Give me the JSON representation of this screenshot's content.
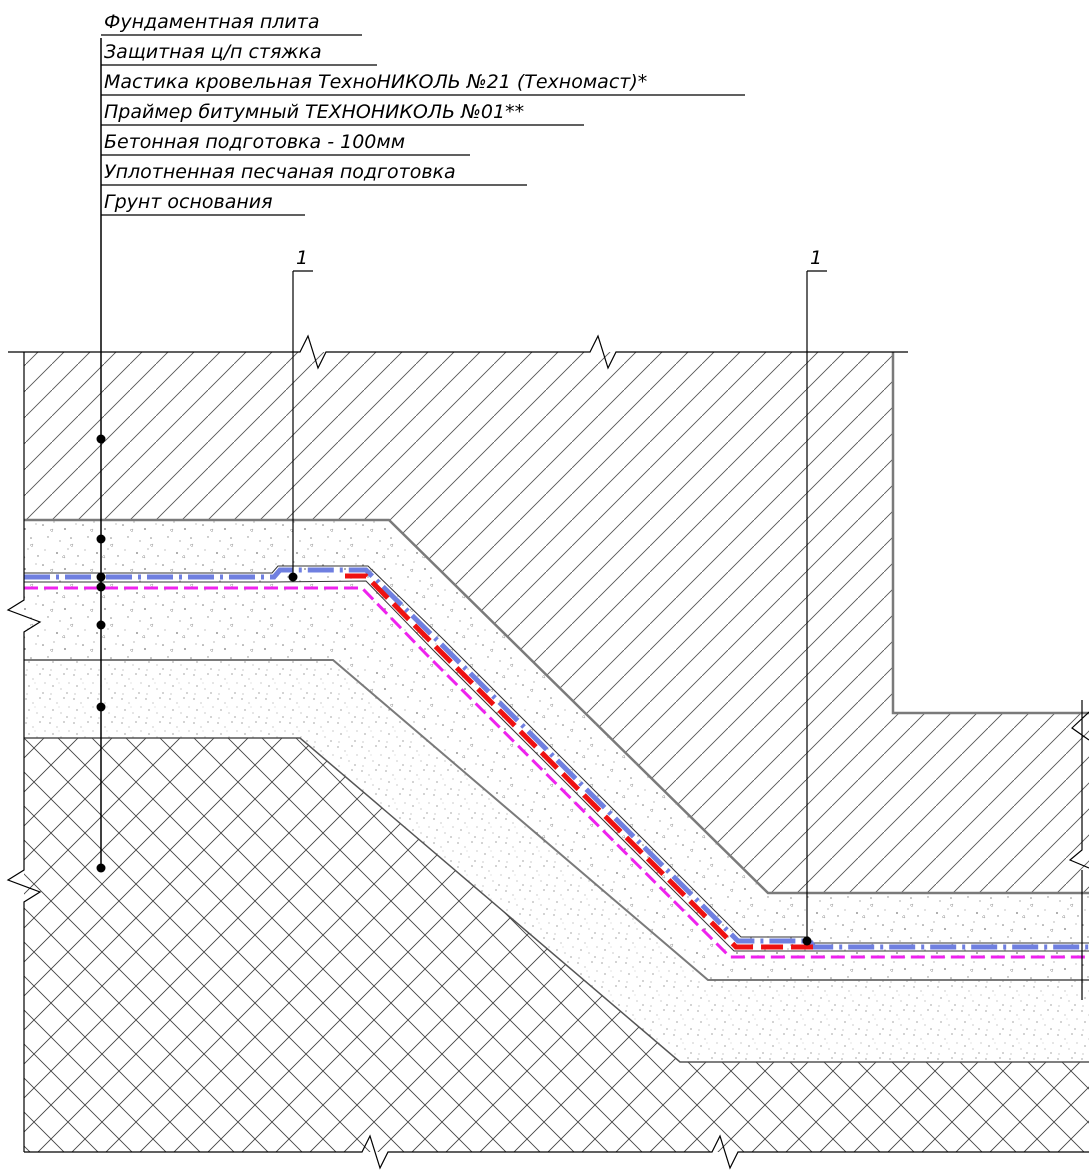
{
  "callout": {
    "items": [
      {
        "label": "Фундаментная плита"
      },
      {
        "label": "Защитная ц/п стяжка"
      },
      {
        "label": "Мастика кровельная ТехноНИКОЛЬ №21 (Техномаст)*"
      },
      {
        "label": "Праймер битумный ТЕХНОНИКОЛЬ №01**"
      },
      {
        "label": "Бетонная подготовка - 100мм"
      },
      {
        "label": "Уплотненная песчаная подготовка"
      },
      {
        "label": "Грунт основания"
      }
    ]
  },
  "references": [
    {
      "label": "1"
    },
    {
      "label": "1"
    }
  ],
  "colors": {
    "waterproofing_blue": "#6f7fe0",
    "mastic_red": "#ee1111",
    "primer_magenta": "#ee22ee",
    "outline": "#7a7a7a",
    "hatch": "#555555"
  }
}
